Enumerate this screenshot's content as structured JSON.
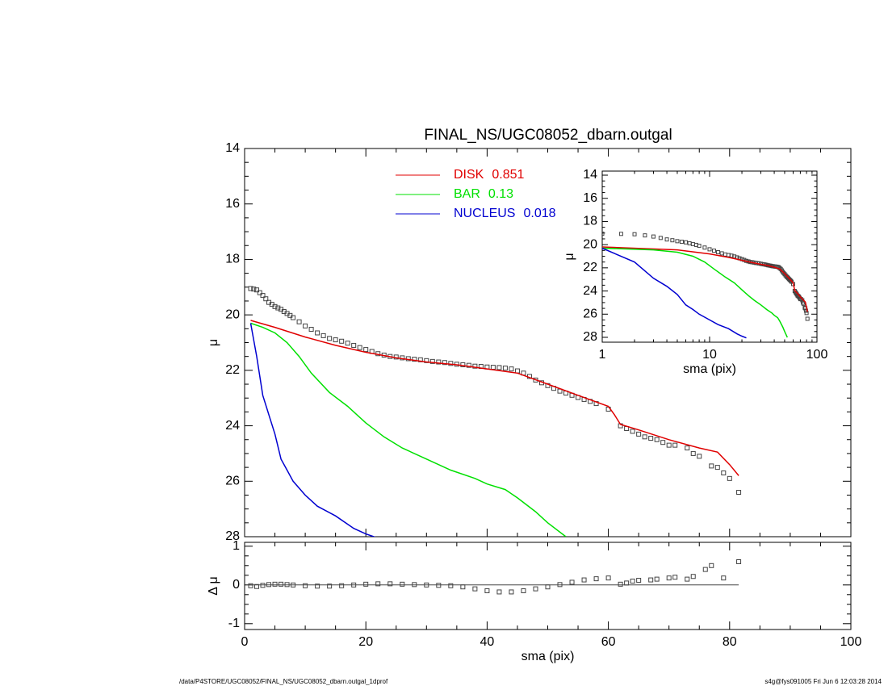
{
  "chart_data": [
    {
      "type": "line",
      "title": "FINAL_NS/UGC08052_dbarn.outgal",
      "ylabel": "μ",
      "xlim": [
        0,
        100
      ],
      "xticks": [
        0,
        20,
        40,
        60,
        80,
        100
      ],
      "ylim": [
        28,
        14
      ],
      "yticks": [
        14,
        16,
        18,
        20,
        22,
        24,
        26,
        28
      ],
      "series": [
        {
          "style": "markers",
          "color": "#444444",
          "x": [
            1,
            1.5,
            2,
            2.5,
            3,
            3.5,
            4,
            4.5,
            5,
            5.5,
            6,
            6.5,
            7,
            7.5,
            8,
            9,
            10,
            11,
            12,
            13,
            14,
            15,
            16,
            17,
            18,
            19,
            20,
            21,
            22,
            23,
            24,
            25,
            26,
            27,
            28,
            29,
            30,
            31,
            32,
            33,
            34,
            35,
            36,
            37,
            38,
            39,
            40,
            41,
            42,
            43,
            44,
            45,
            46,
            47,
            48,
            49,
            50,
            51,
            52,
            53,
            54,
            55,
            56,
            57,
            58,
            60,
            62,
            63,
            64,
            65,
            66,
            67,
            68,
            69,
            70,
            71,
            73,
            74,
            75,
            77,
            78,
            79,
            80,
            81.5
          ],
          "values": [
            19.05,
            19.07,
            19.1,
            19.2,
            19.3,
            19.42,
            19.55,
            19.62,
            19.7,
            19.75,
            19.8,
            19.88,
            19.95,
            20.02,
            20.1,
            20.25,
            20.4,
            20.52,
            20.65,
            20.75,
            20.85,
            20.9,
            20.95,
            21.02,
            21.1,
            21.18,
            21.25,
            21.32,
            21.4,
            21.45,
            21.5,
            21.52,
            21.55,
            21.58,
            21.6,
            21.62,
            21.65,
            21.68,
            21.7,
            21.72,
            21.75,
            21.78,
            21.8,
            21.82,
            21.85,
            21.86,
            21.88,
            21.89,
            21.9,
            21.92,
            21.95,
            22.02,
            22.1,
            22.22,
            22.35,
            22.45,
            22.55,
            22.65,
            22.75,
            22.82,
            22.9,
            22.98,
            23.05,
            23.12,
            23.2,
            23.4,
            24.0,
            24.1,
            24.2,
            24.3,
            24.4,
            24.45,
            24.5,
            24.6,
            24.7,
            24.7,
            24.8,
            25.0,
            25.1,
            25.45,
            25.5,
            25.7,
            25.9,
            26.4
          ]
        },
        {
          "name": "DISK",
          "fraction": 0.851,
          "color": "#e00000",
          "style": "line",
          "x": [
            1,
            5,
            10,
            15,
            20,
            25,
            30,
            35,
            40,
            45,
            50,
            55,
            60,
            61,
            62,
            65,
            70,
            75,
            78,
            80,
            81.5
          ],
          "values": [
            20.2,
            20.45,
            20.8,
            21.1,
            21.35,
            21.55,
            21.7,
            21.8,
            21.95,
            22.1,
            22.5,
            22.9,
            23.3,
            23.6,
            23.95,
            24.15,
            24.5,
            24.8,
            24.95,
            25.4,
            25.8
          ]
        },
        {
          "name": "BAR",
          "fraction": 0.13,
          "color": "#00e000",
          "style": "line",
          "x": [
            1,
            3,
            5,
            7,
            9,
            11,
            14,
            17,
            20,
            23,
            26,
            30,
            34,
            38,
            40,
            43,
            45,
            48,
            50,
            53
          ],
          "values": [
            20.3,
            20.45,
            20.65,
            21.0,
            21.5,
            22.1,
            22.8,
            23.3,
            23.9,
            24.4,
            24.8,
            25.2,
            25.6,
            25.9,
            26.1,
            26.3,
            26.6,
            27.1,
            27.5,
            28.0
          ]
        },
        {
          "name": "NUCLEUS",
          "fraction": 0.018,
          "color": "#0000d0",
          "style": "line",
          "x": [
            1,
            2,
            3,
            4,
            5,
            6,
            7,
            8,
            10,
            12,
            15,
            18,
            20,
            22
          ],
          "values": [
            20.3,
            21.5,
            22.9,
            23.6,
            24.3,
            25.2,
            25.6,
            26.0,
            26.5,
            26.9,
            27.25,
            27.7,
            27.9,
            28.05
          ]
        }
      ]
    },
    {
      "type": "scatter",
      "ylabel": "Δ μ",
      "xlabel": "sma (pix)",
      "xlim": [
        0,
        100
      ],
      "xticks": [
        0,
        20,
        40,
        60,
        80,
        100
      ],
      "ylim": [
        -1.15,
        1.1
      ],
      "yticks": [
        -1,
        0,
        1
      ],
      "hline": 0,
      "color": "#444444",
      "x": [
        1,
        2,
        3,
        4,
        5,
        6,
        7,
        8,
        10,
        12,
        14,
        16,
        18,
        20,
        22,
        24,
        26,
        28,
        30,
        32,
        34,
        36,
        38,
        40,
        42,
        44,
        46,
        48,
        50,
        52,
        54,
        56,
        58,
        60,
        62,
        63,
        64,
        65,
        67,
        68,
        70,
        71,
        73,
        74,
        76,
        77,
        79,
        81.5
      ],
      "values": [
        -0.02,
        -0.04,
        -0.01,
        0.01,
        0.02,
        0.02,
        0.01,
        0.0,
        -0.02,
        -0.03,
        -0.03,
        -0.02,
        0.0,
        0.02,
        0.03,
        0.03,
        0.02,
        0.01,
        0.0,
        -0.01,
        -0.02,
        -0.05,
        -0.1,
        -0.15,
        -0.18,
        -0.18,
        -0.15,
        -0.1,
        -0.05,
        0.01,
        0.07,
        0.13,
        0.16,
        0.18,
        0.02,
        0.05,
        0.1,
        0.12,
        0.13,
        0.15,
        0.18,
        0.2,
        0.15,
        0.22,
        0.4,
        0.5,
        0.18,
        0.6
      ]
    },
    {
      "type": "inset",
      "ylabel": "μ",
      "xlabel": "sma (pix)",
      "xlog": true,
      "xlim": [
        1,
        100
      ],
      "xticks": [
        1,
        10,
        100
      ],
      "ylim": [
        28.42,
        13.65
      ],
      "yticks": [
        14,
        16,
        18,
        20,
        22,
        24,
        26,
        28
      ]
    }
  ],
  "footer": {
    "left": "/data/P4STORE/UGC08052/FINAL_NS/UGC08052_dbarn.outgal_1dprof",
    "right": "s4g@fys091005  Fri Jun  6 12:03:28 2014"
  }
}
